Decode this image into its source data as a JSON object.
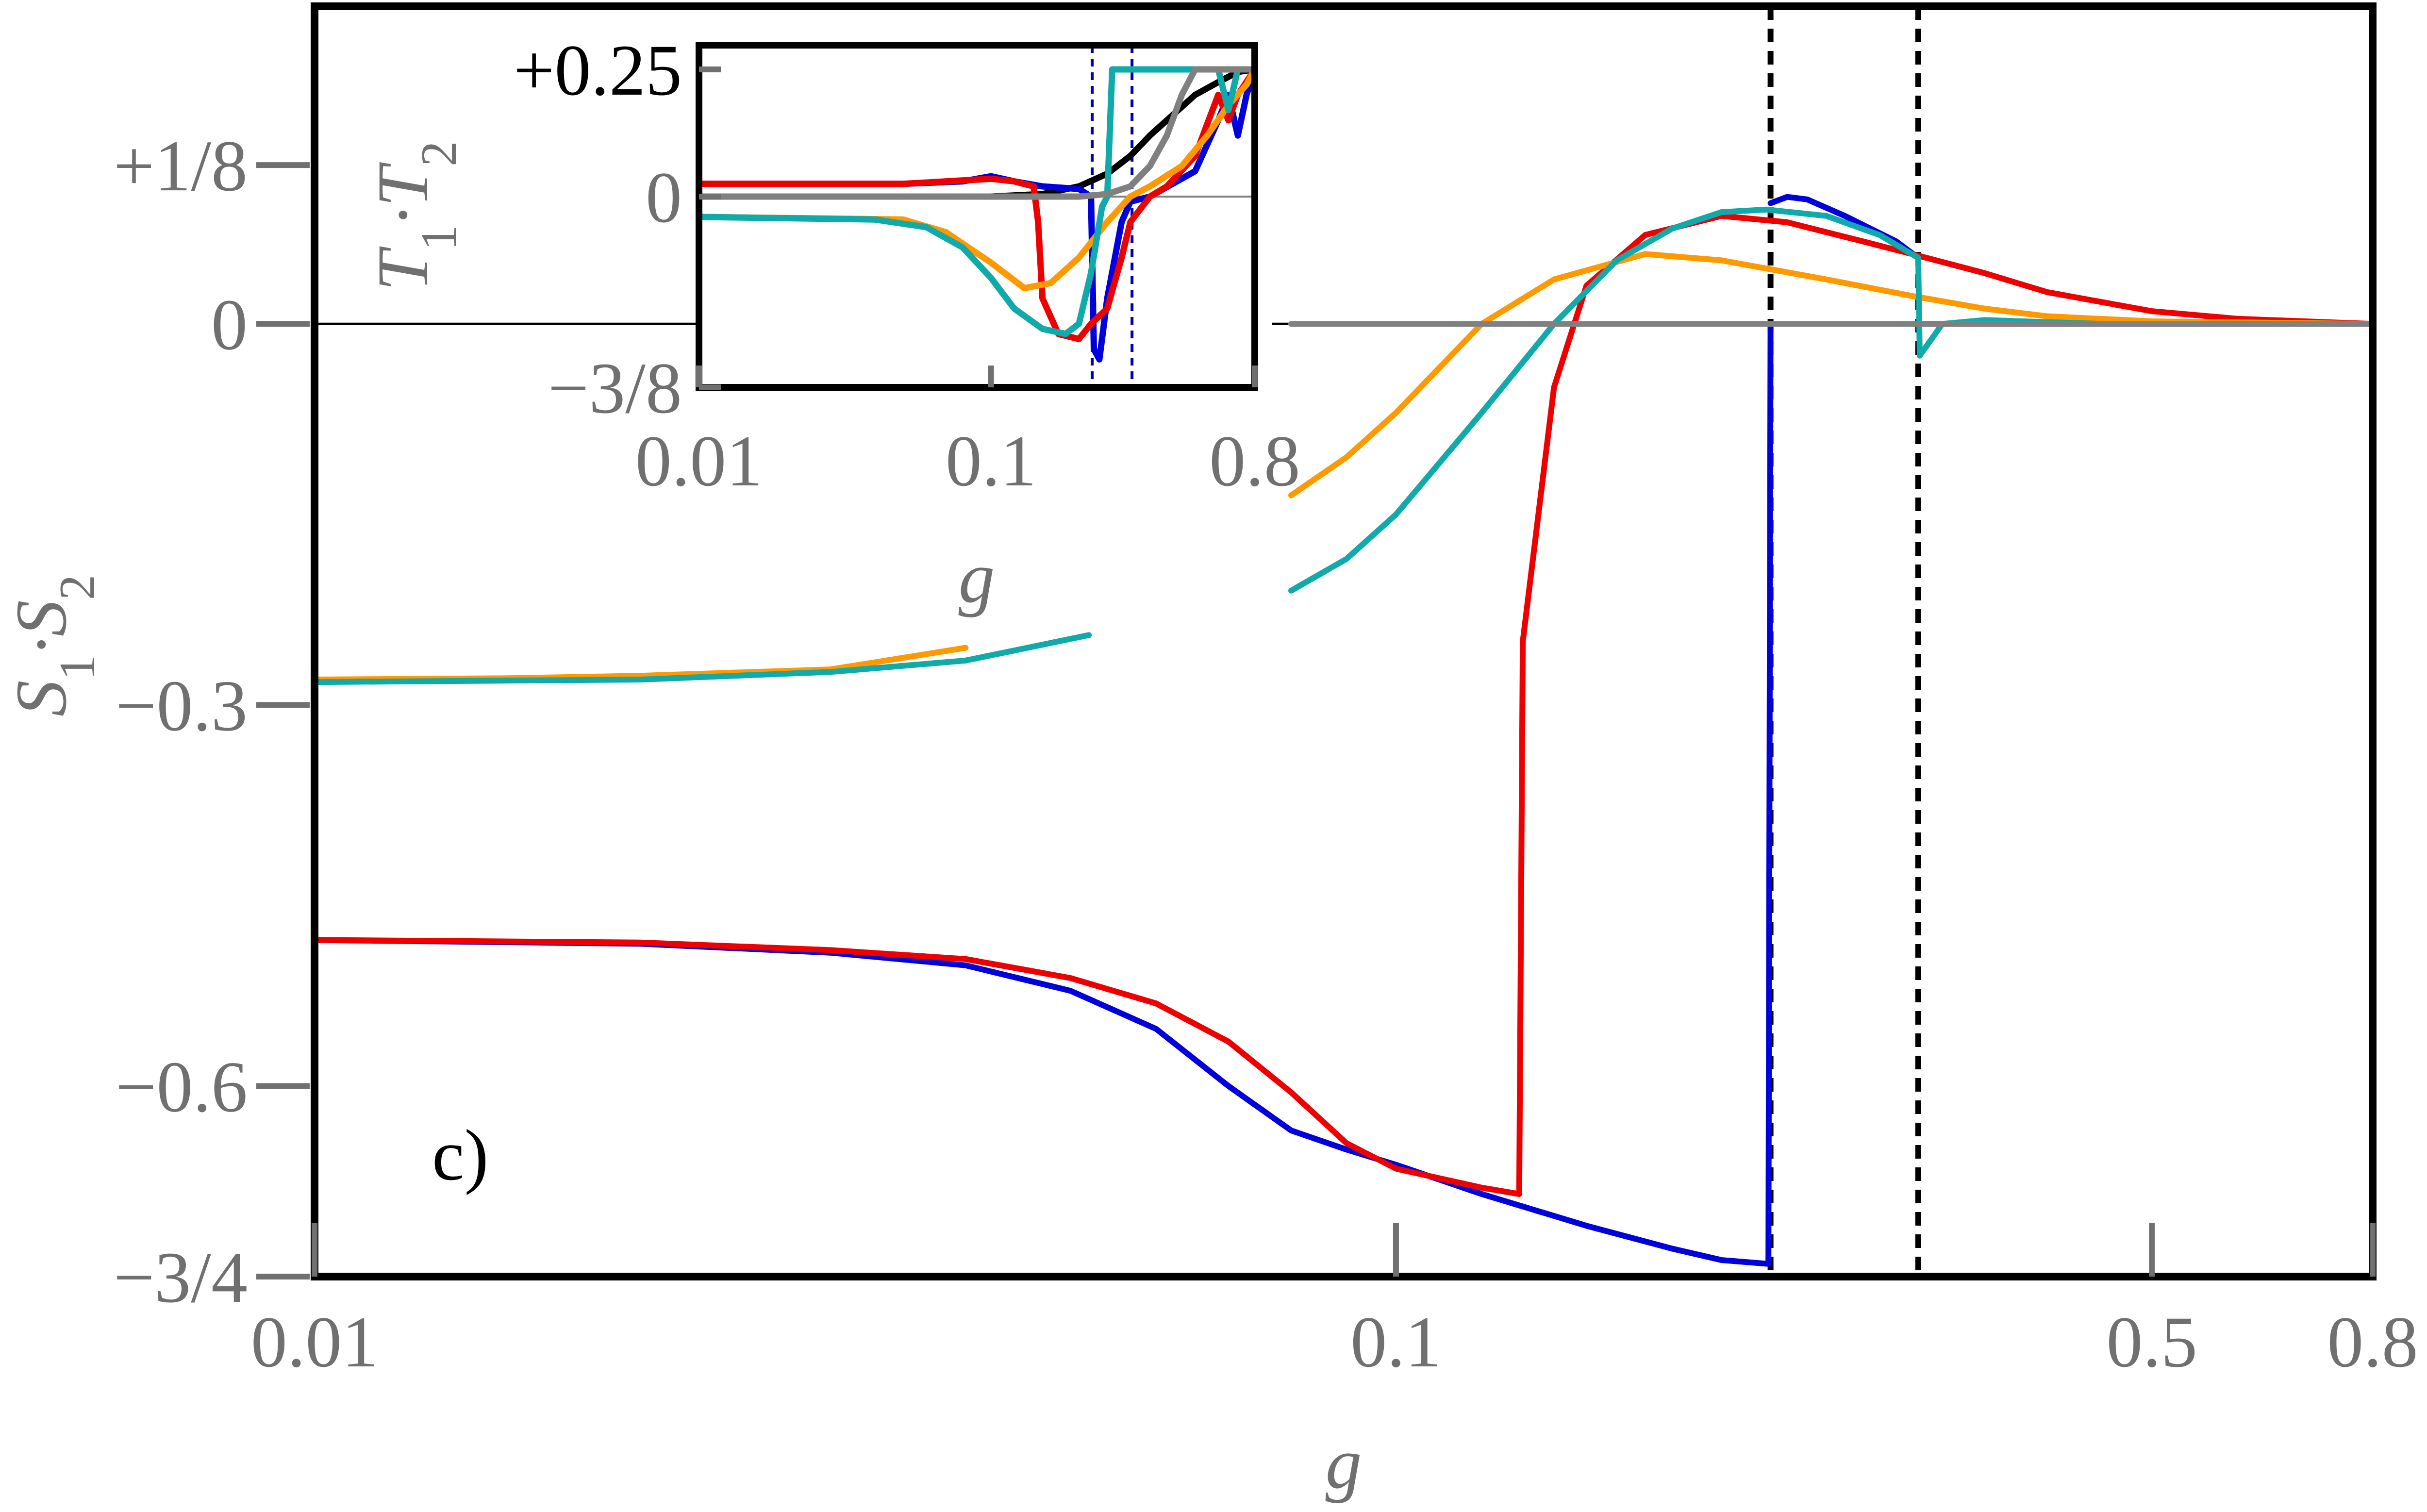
{
  "chart_data": [
    {
      "panel": "main",
      "type": "line",
      "panel_label": "c)",
      "xlabel": "g",
      "ylabel": "S1·S2",
      "x_scale": "log",
      "xlim": [
        0.01,
        0.8
      ],
      "ylim": [
        -0.75,
        0.25
      ],
      "x_ticks": [
        {
          "value": 0.01,
          "label": "0.01"
        },
        {
          "value": 0.1,
          "label": "0.1"
        },
        {
          "value": 0.5,
          "label": "0.5"
        },
        {
          "value": 0.8,
          "label": "0.8"
        }
      ],
      "y_ticks": [
        {
          "value": -0.75,
          "label": "−3/4"
        },
        {
          "value": -0.6,
          "label": "−0.6"
        },
        {
          "value": -0.3,
          "label": "−0.3"
        },
        {
          "value": 0,
          "label": "0"
        },
        {
          "value": 0.125,
          "label": "+1/8"
        }
      ],
      "reference_lines": [
        {
          "orientation": "vertical",
          "x": 0.222,
          "style": "dashed",
          "color": "#000000"
        },
        {
          "orientation": "vertical",
          "x": 0.304,
          "style": "dashed",
          "color": "#000000"
        },
        {
          "orientation": "horizontal",
          "y": 0,
          "style": "solid",
          "color": "#000000"
        }
      ],
      "series": [
        {
          "color": "#0000dd",
          "segments": [
            [
              [
                0.01,
                -0.485
              ],
              [
                0.02,
                -0.488
              ],
              [
                0.03,
                -0.495
              ],
              [
                0.04,
                -0.505
              ],
              [
                0.05,
                -0.525
              ],
              [
                0.06,
                -0.555
              ],
              [
                0.07,
                -0.6
              ],
              [
                0.08,
                -0.635
              ],
              [
                0.09,
                -0.65
              ],
              [
                0.1,
                -0.662
              ],
              [
                0.12,
                -0.685
              ],
              [
                0.15,
                -0.71
              ],
              [
                0.18,
                -0.728
              ],
              [
                0.2,
                -0.737
              ],
              [
                0.221,
                -0.74
              ]
            ],
            [
              [
                0.221,
                -0.74
              ],
              [
                0.222,
                0.0
              ]
            ],
            [
              [
                0.222,
                0.095
              ],
              [
                0.23,
                0.1
              ],
              [
                0.24,
                0.098
              ],
              [
                0.26,
                0.085
              ],
              [
                0.29,
                0.065
              ],
              [
                0.304,
                0.052
              ]
            ],
            [
              [
                0.304,
                0.0
              ],
              [
                0.8,
                0.0
              ]
            ]
          ]
        },
        {
          "color": "#ee0000",
          "segments": [
            [
              [
                0.01,
                -0.485
              ],
              [
                0.02,
                -0.487
              ],
              [
                0.03,
                -0.493
              ],
              [
                0.04,
                -0.5
              ],
              [
                0.05,
                -0.515
              ],
              [
                0.06,
                -0.535
              ],
              [
                0.07,
                -0.565
              ],
              [
                0.08,
                -0.605
              ],
              [
                0.09,
                -0.645
              ],
              [
                0.1,
                -0.665
              ],
              [
                0.12,
                -0.68
              ],
              [
                0.13,
                -0.685
              ]
            ],
            [
              [
                0.13,
                -0.685
              ],
              [
                0.131,
                -0.25
              ]
            ],
            [
              [
                0.131,
                -0.25
              ],
              [
                0.14,
                -0.05
              ],
              [
                0.15,
                0.03
              ],
              [
                0.17,
                0.07
              ],
              [
                0.2,
                0.085
              ],
              [
                0.23,
                0.08
              ],
              [
                0.27,
                0.065
              ],
              [
                0.3,
                0.055
              ],
              [
                0.35,
                0.04
              ],
              [
                0.4,
                0.025
              ],
              [
                0.5,
                0.01
              ],
              [
                0.6,
                0.004
              ],
              [
                0.8,
                0.0
              ]
            ]
          ]
        },
        {
          "color": "#ff9900",
          "segments": [
            [
              [
                0.01,
                -0.28
              ],
              [
                0.015,
                -0.279
              ],
              [
                0.02,
                -0.277
              ],
              [
                0.03,
                -0.272
              ],
              [
                0.04,
                -0.255
              ]
            ],
            [
              [
                0.08,
                -0.135
              ],
              [
                0.09,
                -0.105
              ],
              [
                0.1,
                -0.07
              ],
              [
                0.12,
                0.0
              ],
              [
                0.14,
                0.035
              ],
              [
                0.17,
                0.055
              ],
              [
                0.2,
                0.05
              ],
              [
                0.25,
                0.035
              ],
              [
                0.3,
                0.022
              ],
              [
                0.35,
                0.012
              ],
              [
                0.4,
                0.006
              ],
              [
                0.5,
                0.002
              ],
              [
                0.8,
                0.0
              ]
            ]
          ]
        },
        {
          "color": "#11aaaa",
          "segments": [
            [
              [
                0.01,
                -0.282
              ],
              [
                0.02,
                -0.28
              ],
              [
                0.03,
                -0.274
              ],
              [
                0.04,
                -0.265
              ],
              [
                0.052,
                -0.245
              ]
            ],
            [
              [
                0.08,
                -0.21
              ],
              [
                0.09,
                -0.185
              ],
              [
                0.1,
                -0.15
              ],
              [
                0.12,
                -0.07
              ],
              [
                0.14,
                0.0
              ],
              [
                0.16,
                0.05
              ],
              [
                0.18,
                0.075
              ],
              [
                0.2,
                0.088
              ],
              [
                0.22,
                0.09
              ],
              [
                0.25,
                0.085
              ],
              [
                0.28,
                0.07
              ],
              [
                0.304,
                0.052
              ]
            ],
            [
              [
                0.304,
                0.052
              ],
              [
                0.305,
                -0.025
              ],
              [
                0.32,
                0.0
              ],
              [
                0.35,
                0.003
              ],
              [
                0.45,
                0.0
              ],
              [
                0.8,
                0.0
              ]
            ]
          ]
        },
        {
          "color": "#808080",
          "segments": [
            [
              [
                0.08,
                0.0
              ],
              [
                0.8,
                0.0
              ]
            ]
          ]
        }
      ]
    },
    {
      "panel": "inset",
      "type": "line",
      "xlabel": "g",
      "ylabel": "T1·T2",
      "x_scale": "log",
      "xlim": [
        0.01,
        0.8
      ],
      "ylim": [
        -0.375,
        0.25
      ],
      "x_ticks": [
        {
          "value": 0.01,
          "label": "0.01"
        },
        {
          "value": 0.1,
          "label": "0.1"
        },
        {
          "value": 0.8,
          "label": "0.8"
        }
      ],
      "y_ticks": [
        {
          "value": -0.375,
          "label": "−3/8"
        },
        {
          "value": 0,
          "label": "0"
        },
        {
          "value": 0.25,
          "label": "+0.25"
        }
      ],
      "reference_lines": [
        {
          "orientation": "vertical",
          "x": 0.222,
          "style": "dashed",
          "color": "#0000aa"
        },
        {
          "orientation": "vertical",
          "x": 0.304,
          "style": "dashed",
          "color": "#0000aa"
        },
        {
          "orientation": "horizontal",
          "y": 0,
          "style": "solid",
          "color": "#808080"
        }
      ],
      "series": [
        {
          "color": "#000000",
          "segments": [
            [
              [
                0.01,
                0.0
              ],
              [
                0.1,
                0.0
              ],
              [
                0.15,
                0.005
              ],
              [
                0.2,
                0.02
              ],
              [
                0.25,
                0.045
              ],
              [
                0.3,
                0.08
              ],
              [
                0.35,
                0.12
              ],
              [
                0.4,
                0.15
              ],
              [
                0.5,
                0.2
              ],
              [
                0.6,
                0.225
              ],
              [
                0.7,
                0.245
              ],
              [
                0.8,
                0.25
              ]
            ]
          ]
        },
        {
          "color": "#0000dd",
          "segments": [
            [
              [
                0.01,
                0.025
              ],
              [
                0.05,
                0.025
              ],
              [
                0.08,
                0.03
              ],
              [
                0.1,
                0.04
              ],
              [
                0.12,
                0.03
              ],
              [
                0.15,
                0.02
              ],
              [
                0.2,
                0.015
              ],
              [
                0.22,
                0.0
              ],
              [
                0.225,
                -0.3
              ],
              [
                0.235,
                -0.32
              ],
              [
                0.25,
                -0.2
              ],
              [
                0.28,
                -0.05
              ],
              [
                0.3,
                -0.01
              ],
              [
                0.35,
                0.0
              ],
              [
                0.5,
                0.05
              ],
              [
                0.6,
                0.15
              ],
              [
                0.65,
                0.2
              ],
              [
                0.7,
                0.12
              ],
              [
                0.75,
                0.2
              ],
              [
                0.8,
                0.25
              ]
            ]
          ]
        },
        {
          "color": "#ee0000",
          "segments": [
            [
              [
                0.01,
                0.025
              ],
              [
                0.05,
                0.025
              ],
              [
                0.1,
                0.035
              ],
              [
                0.12,
                0.03
              ],
              [
                0.14,
                0.02
              ],
              [
                0.145,
                -0.05
              ],
              [
                0.15,
                -0.2
              ],
              [
                0.17,
                -0.27
              ],
              [
                0.2,
                -0.28
              ],
              [
                0.22,
                -0.25
              ],
              [
                0.25,
                -0.22
              ],
              [
                0.28,
                -0.12
              ],
              [
                0.3,
                -0.05
              ],
              [
                0.35,
                0.0
              ],
              [
                0.4,
                0.02
              ],
              [
                0.5,
                0.08
              ],
              [
                0.6,
                0.2
              ],
              [
                0.65,
                0.15
              ],
              [
                0.7,
                0.2
              ],
              [
                0.8,
                0.25
              ]
            ]
          ]
        },
        {
          "color": "#ff9900",
          "segments": [
            [
              [
                0.01,
                -0.04
              ],
              [
                0.05,
                -0.045
              ],
              [
                0.07,
                -0.07
              ],
              [
                0.1,
                -0.13
              ],
              [
                0.13,
                -0.18
              ],
              [
                0.16,
                -0.17
              ],
              [
                0.2,
                -0.12
              ],
              [
                0.25,
                -0.05
              ],
              [
                0.3,
                0.0
              ],
              [
                0.35,
                0.02
              ],
              [
                0.45,
                0.06
              ],
              [
                0.55,
                0.12
              ],
              [
                0.65,
                0.18
              ],
              [
                0.75,
                0.22
              ],
              [
                0.8,
                0.25
              ]
            ]
          ]
        },
        {
          "color": "#11aaaa",
          "segments": [
            [
              [
                0.01,
                -0.04
              ],
              [
                0.04,
                -0.045
              ],
              [
                0.06,
                -0.06
              ],
              [
                0.08,
                -0.1
              ],
              [
                0.1,
                -0.16
              ],
              [
                0.12,
                -0.22
              ],
              [
                0.15,
                -0.26
              ],
              [
                0.18,
                -0.27
              ],
              [
                0.2,
                -0.25
              ],
              [
                0.22,
                -0.15
              ],
              [
                0.24,
                -0.02
              ],
              [
                0.25,
                0.0
              ],
              [
                0.26,
                0.25
              ],
              [
                0.6,
                0.25
              ],
              [
                0.65,
                0.17
              ],
              [
                0.7,
                0.25
              ],
              [
                0.8,
                0.25
              ]
            ]
          ]
        },
        {
          "color": "#808080",
          "segments": [
            [
              [
                0.01,
                0.0
              ],
              [
                0.2,
                0.0
              ],
              [
                0.25,
                0.005
              ],
              [
                0.3,
                0.02
              ],
              [
                0.35,
                0.06
              ],
              [
                0.4,
                0.12
              ],
              [
                0.45,
                0.2
              ],
              [
                0.5,
                0.25
              ],
              [
                0.8,
                0.25
              ]
            ]
          ]
        }
      ]
    }
  ]
}
